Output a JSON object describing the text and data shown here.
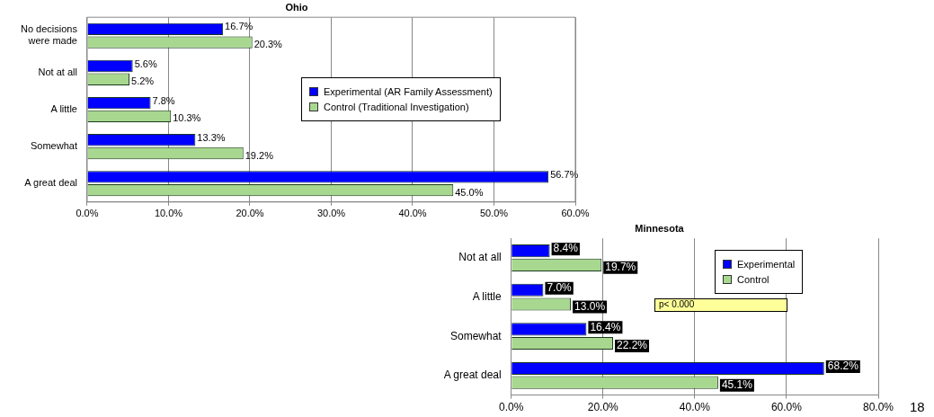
{
  "chart_data": [
    {
      "type": "bar",
      "orientation": "horizontal",
      "title": "Ohio",
      "categories": [
        "No decisions were made",
        "Not at all",
        "A little",
        "Somewhat",
        "A great deal"
      ],
      "series": [
        {
          "name": "Experimental (AR Family Assessment)",
          "color": "#0000ff",
          "values": [
            16.7,
            5.6,
            7.8,
            13.3,
            56.7
          ],
          "value_labels": [
            "16.7%",
            "5.6%",
            "7.8%",
            "13.3%",
            "56.7%"
          ]
        },
        {
          "name": "Control (Traditional Investigation)",
          "color": "#a8d890",
          "values": [
            20.3,
            5.2,
            10.3,
            19.2,
            45.0
          ],
          "value_labels": [
            "20.3%",
            "5.2%",
            "10.3%",
            "19.2%",
            "45.0%"
          ]
        }
      ],
      "xlim": [
        0,
        60
      ],
      "xticks": [
        {
          "value": 0,
          "label": "0.0%"
        },
        {
          "value": 10,
          "label": "10.0%"
        },
        {
          "value": 20,
          "label": "20.0%"
        },
        {
          "value": 30,
          "label": "30.0%"
        },
        {
          "value": 40,
          "label": "40.0%"
        },
        {
          "value": 50,
          "label": "50.0%"
        },
        {
          "value": 60,
          "label": "60.0%"
        }
      ],
      "grid": "x",
      "legend": "right"
    },
    {
      "type": "bar",
      "orientation": "horizontal",
      "title": "Minnesota",
      "categories": [
        "Not at all",
        "A little",
        "Somewhat",
        "A great deal"
      ],
      "series": [
        {
          "name": "Experimental",
          "color": "#0000ff",
          "values": [
            8.4,
            7.0,
            16.4,
            68.2
          ],
          "value_labels": [
            "8.4%",
            "7.0%",
            "16.4%",
            "68.2%"
          ]
        },
        {
          "name": "Control",
          "color": "#a8d890",
          "values": [
            19.7,
            13.0,
            22.2,
            45.1
          ],
          "value_labels": [
            "19.7%",
            "13.0%",
            "22.2%",
            "45.1%"
          ]
        }
      ],
      "xlim": [
        0,
        80
      ],
      "xticks": [
        {
          "value": 0,
          "label": "0.0%"
        },
        {
          "value": 20,
          "label": "20.0%"
        },
        {
          "value": 40,
          "label": "40.0%"
        },
        {
          "value": 60,
          "label": "60.0%"
        },
        {
          "value": 80,
          "label": "80.0%"
        }
      ],
      "grid": "x",
      "legend": "top right",
      "annotations": [
        "p< 0.000",
        "18"
      ]
    }
  ]
}
